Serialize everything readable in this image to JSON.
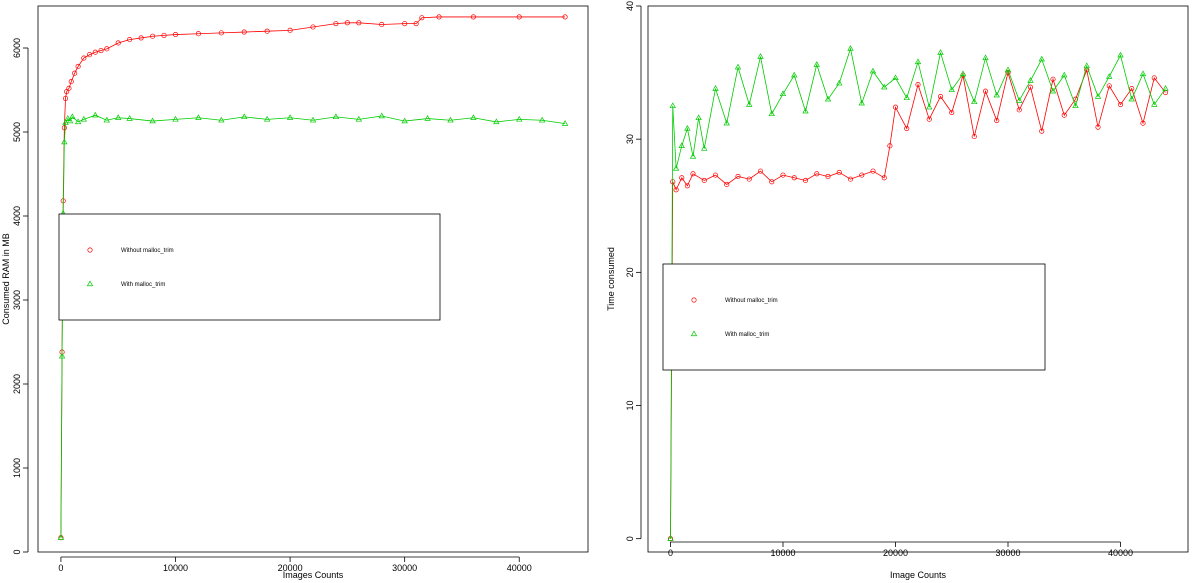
{
  "chart_data": [
    {
      "type": "line",
      "xlabel": "Images Counts",
      "ylabel": "Consumed RAM in MB",
      "xlim": [
        -2000,
        46000
      ],
      "ylim": [
        0,
        6500
      ],
      "xticks": [
        0,
        10000,
        20000,
        30000,
        40000
      ],
      "yticks": [
        0,
        1000,
        2000,
        3000,
        4000,
        5000,
        6000
      ],
      "legend": {
        "placement": "center-left",
        "entries": [
          {
            "label": "Without malloc_trim",
            "color": "#ff0000",
            "marker": "circle"
          },
          {
            "label": "With malloc_trim",
            "color": "#00cc00",
            "marker": "triangle"
          }
        ]
      },
      "series": [
        {
          "name": "Without malloc_trim",
          "color": "#ff0000",
          "marker": "circle",
          "x": [
            0,
            100,
            200,
            300,
            400,
            500,
            700,
            900,
            1200,
            1500,
            2000,
            2500,
            3000,
            3500,
            4000,
            5000,
            6000,
            7000,
            8000,
            9000,
            10000,
            12000,
            14000,
            16000,
            18000,
            20000,
            22000,
            24000,
            25000,
            26000,
            28000,
            30000,
            31000,
            31500,
            33000,
            36000,
            40000,
            44000
          ],
          "y": [
            170,
            2380,
            4180,
            5050,
            5400,
            5480,
            5520,
            5600,
            5700,
            5780,
            5880,
            5920,
            5950,
            5970,
            5990,
            6060,
            6100,
            6120,
            6140,
            6150,
            6160,
            6170,
            6180,
            6190,
            6200,
            6210,
            6250,
            6290,
            6300,
            6300,
            6280,
            6290,
            6290,
            6360,
            6370,
            6370,
            6370,
            6370
          ]
        },
        {
          "name": "With malloc_trim",
          "color": "#00cc00",
          "marker": "triangle",
          "x": [
            0,
            100,
            200,
            300,
            400,
            600,
            800,
            1000,
            1500,
            2000,
            3000,
            4000,
            5000,
            6000,
            8000,
            10000,
            12000,
            14000,
            16000,
            18000,
            20000,
            22000,
            24000,
            26000,
            28000,
            30000,
            32000,
            34000,
            36000,
            38000,
            40000,
            42000,
            44000
          ],
          "y": [
            170,
            2330,
            4030,
            4880,
            5110,
            5160,
            5130,
            5180,
            5120,
            5150,
            5200,
            5140,
            5170,
            5160,
            5130,
            5150,
            5170,
            5140,
            5180,
            5150,
            5170,
            5140,
            5180,
            5150,
            5190,
            5130,
            5160,
            5140,
            5170,
            5120,
            5150,
            5140,
            5100
          ]
        }
      ]
    },
    {
      "type": "line",
      "xlabel": "Image Counts",
      "ylabel": "Time consumed",
      "xlim": [
        -2000,
        46000
      ],
      "ylim": [
        -1,
        40
      ],
      "xticks": [
        0,
        10000,
        20000,
        30000,
        40000
      ],
      "yticks": [
        0,
        10,
        20,
        30,
        40
      ],
      "legend": {
        "placement": "center-left",
        "entries": [
          {
            "label": "Without malloc_trim",
            "color": "#ff0000",
            "marker": "circle"
          },
          {
            "label": "With malloc_trim",
            "color": "#00cc00",
            "marker": "triangle"
          }
        ]
      },
      "series": [
        {
          "name": "Without malloc_trim",
          "color": "#ff0000",
          "marker": "circle",
          "x": [
            0,
            200,
            500,
            1000,
            1500,
            2000,
            3000,
            4000,
            5000,
            6000,
            7000,
            8000,
            9000,
            10000,
            11000,
            12000,
            13000,
            14000,
            15000,
            16000,
            17000,
            18000,
            19000,
            19500,
            20000,
            21000,
            22000,
            23000,
            24000,
            25000,
            26000,
            27000,
            28000,
            29000,
            30000,
            31000,
            32000,
            33000,
            34000,
            35000,
            36000,
            37000,
            38000,
            39000,
            40000,
            41000,
            42000,
            43000,
            44000
          ],
          "y": [
            0,
            26.8,
            26.2,
            27.1,
            26.5,
            27.4,
            26.9,
            27.3,
            26.6,
            27.2,
            27.0,
            27.6,
            26.8,
            27.3,
            27.1,
            26.9,
            27.4,
            27.2,
            27.5,
            27.0,
            27.3,
            27.6,
            27.1,
            29.5,
            32.4,
            30.8,
            34.1,
            31.5,
            33.2,
            32.0,
            34.8,
            30.2,
            33.6,
            31.4,
            35.0,
            32.2,
            33.9,
            30.6,
            34.5,
            31.8,
            33.0,
            35.2,
            30.9,
            34.0,
            32.6,
            33.8,
            31.2,
            34.6,
            33.5
          ]
        },
        {
          "name": "With malloc_trim",
          "color": "#00cc00",
          "marker": "triangle",
          "x": [
            0,
            200,
            500,
            1000,
            1500,
            2000,
            2500,
            3000,
            4000,
            5000,
            6000,
            7000,
            8000,
            9000,
            10000,
            11000,
            12000,
            13000,
            14000,
            15000,
            16000,
            17000,
            18000,
            19000,
            20000,
            21000,
            22000,
            23000,
            24000,
            25000,
            26000,
            27000,
            28000,
            29000,
            30000,
            31000,
            32000,
            33000,
            34000,
            35000,
            36000,
            37000,
            38000,
            39000,
            40000,
            41000,
            42000,
            43000,
            44000
          ],
          "y": [
            0,
            32.5,
            27.8,
            29.5,
            30.8,
            28.7,
            31.6,
            29.3,
            33.8,
            31.2,
            35.4,
            32.6,
            36.2,
            31.9,
            33.4,
            34.8,
            32.1,
            35.6,
            33.0,
            34.2,
            36.8,
            32.7,
            35.1,
            33.9,
            34.6,
            33.1,
            35.8,
            32.4,
            36.5,
            33.7,
            34.9,
            32.8,
            36.1,
            33.3,
            35.2,
            32.9,
            34.4,
            36.0,
            33.6,
            34.8,
            32.5,
            35.5,
            33.2,
            34.7,
            36.3,
            33.0,
            34.9,
            32.6,
            33.8
          ]
        }
      ]
    }
  ]
}
